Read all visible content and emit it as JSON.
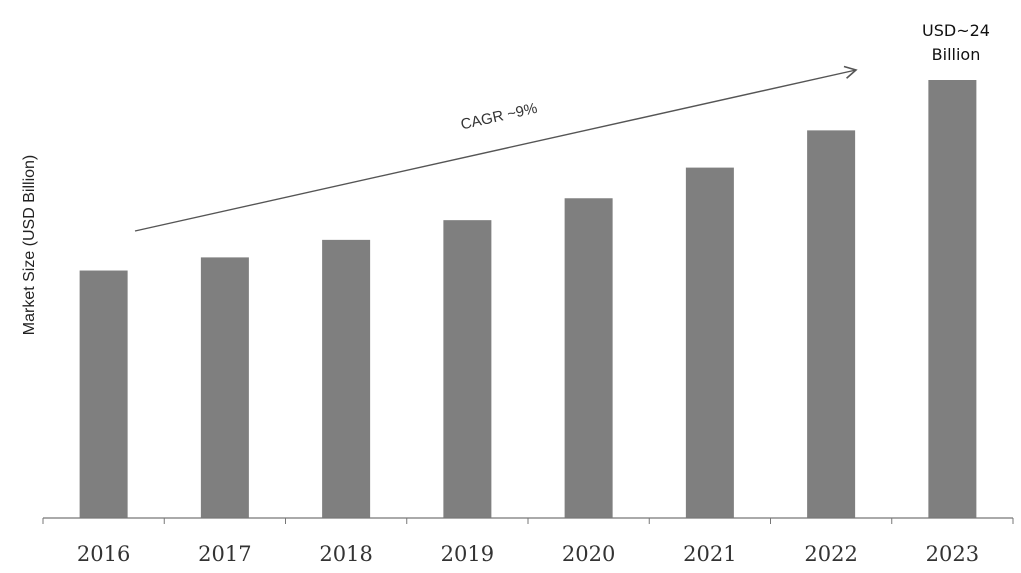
{
  "chart_data": {
    "type": "bar",
    "title": "",
    "xlabel": "",
    "ylabel": "Market Size (USD Billion)",
    "categories": [
      "2016",
      "2017",
      "2018",
      "2019",
      "2020",
      "2021",
      "2022",
      "2023"
    ],
    "values": [
      11.3,
      11.9,
      12.7,
      13.6,
      14.6,
      16.0,
      17.7,
      20.0
    ],
    "ylim": [
      0,
      20
    ],
    "grid": false,
    "bar_color": "#7f7f7f",
    "annotations": {
      "cagr_label": "CAGR ~9%",
      "end_label_line1": "USD~24",
      "end_label_line2": "Billion"
    }
  }
}
